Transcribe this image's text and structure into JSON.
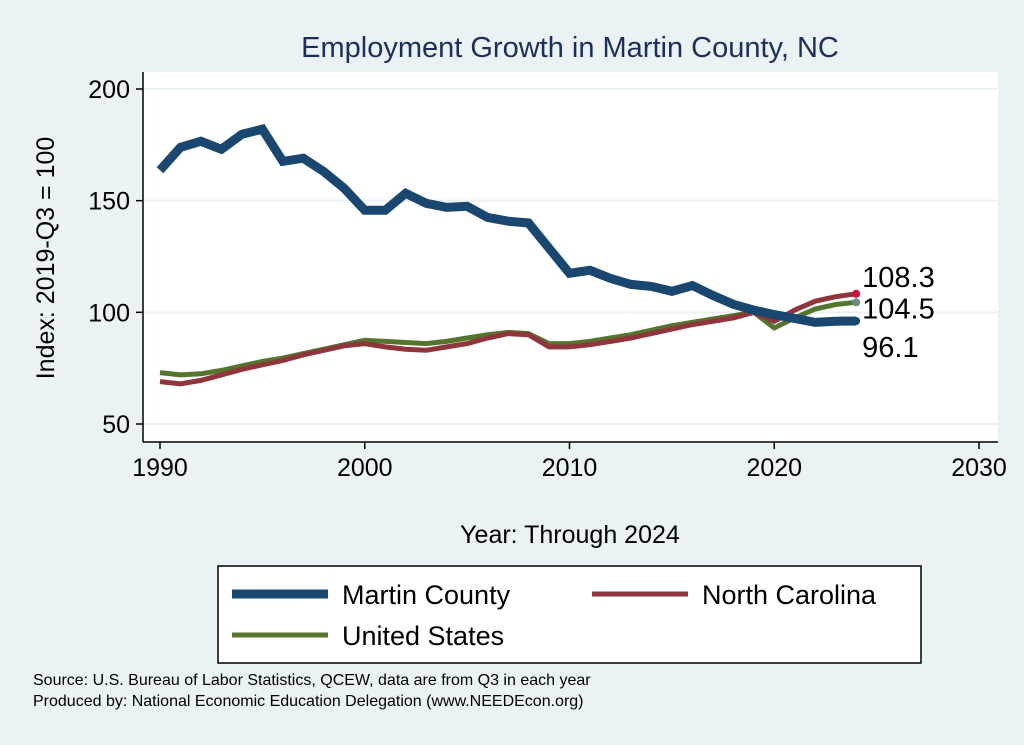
{
  "chart_data": {
    "type": "line",
    "title": "Employment Growth in Martin County, NC",
    "xlabel": "Year: Through 2024",
    "ylabel": "Index: 2019-Q3 = 100",
    "xlim": [
      1990,
      2030
    ],
    "ylim": [
      50,
      200
    ],
    "xticks": [
      "1990",
      "2000",
      "2010",
      "2020",
      "2030"
    ],
    "yticks": [
      "50",
      "100",
      "150",
      "200"
    ],
    "grid": true,
    "legend_position": "bottom",
    "x": [
      1990,
      1991,
      1992,
      1993,
      1994,
      1995,
      1996,
      1997,
      1998,
      1999,
      2000,
      2001,
      2002,
      2003,
      2004,
      2005,
      2006,
      2007,
      2008,
      2009,
      2010,
      2011,
      2012,
      2013,
      2014,
      2015,
      2016,
      2017,
      2018,
      2019,
      2020,
      2021,
      2022,
      2023,
      2024
    ],
    "series": [
      {
        "name": "Martin  County",
        "color": "#1a476f",
        "width": 9,
        "end_label": "96.1",
        "end_dot": "#1a476f",
        "values": [
          163.6,
          173.9,
          176.6,
          173,
          179.7,
          182,
          167.6,
          169,
          163,
          155.5,
          145.7,
          145.7,
          153.3,
          148.8,
          147,
          147.5,
          142.5,
          140.8,
          140,
          128.7,
          117.5,
          118.8,
          115.2,
          112.5,
          111.6,
          109.4,
          112,
          107.6,
          103.6,
          101,
          99,
          97.3,
          95.5,
          96,
          96.1
        ]
      },
      {
        "name": "North Carolina",
        "color": "#90353b",
        "width": 5,
        "end_label": "108.3",
        "end_dot": "#d0103a",
        "values": [
          69,
          68,
          69.5,
          72,
          74.5,
          76.5,
          78.5,
          81,
          83,
          85,
          86,
          84.5,
          83.5,
          83,
          84.5,
          86,
          88.5,
          90.5,
          90,
          84.5,
          84.5,
          85.5,
          87,
          88.5,
          90.5,
          92.5,
          94.5,
          96,
          97.5,
          100,
          96,
          101,
          105,
          107,
          108.3
        ]
      },
      {
        "name": "United States",
        "color": "#55752f",
        "width": 5,
        "end_label": "104.5",
        "end_dot": "#6e8a80",
        "values": [
          73,
          72,
          72.5,
          74,
          76,
          78,
          79.5,
          81.5,
          83.5,
          85.5,
          87.5,
          87,
          86.5,
          86,
          87,
          88.5,
          90,
          91,
          90.5,
          86,
          86,
          87,
          88.5,
          90,
          92,
          94,
          95.5,
          97,
          98.5,
          100,
          93,
          97.5,
          101.5,
          103.5,
          104.5
        ]
      }
    ]
  },
  "notes": {
    "source": "Source: U.S. Bureau of Labor Statistics, QCEW, data are from Q3 in each year",
    "producer": "Produced by: National Economic Education Delegation (www.NEEDEcon.org)"
  }
}
